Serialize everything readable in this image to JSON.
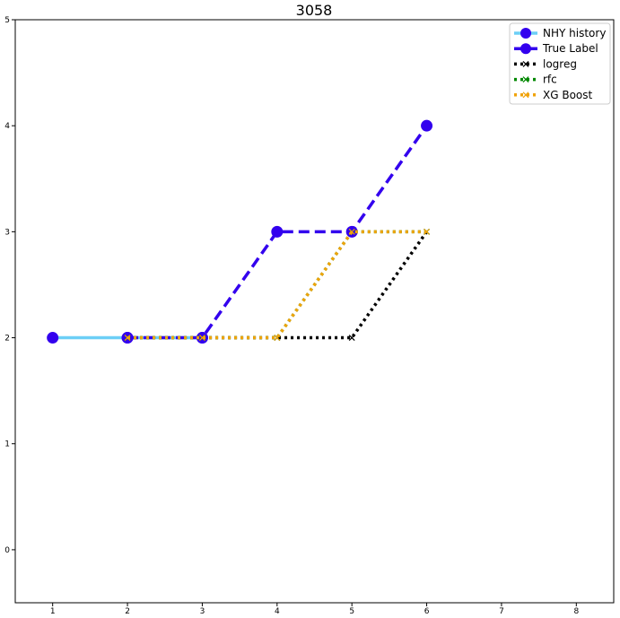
{
  "chart_data": {
    "type": "line",
    "title": "3058",
    "xlabel": "",
    "ylabel": "",
    "xlim": [
      0.5,
      8.5
    ],
    "ylim": [
      -0.5,
      5
    ],
    "xticks": [
      1,
      2,
      3,
      4,
      5,
      6,
      7,
      8
    ],
    "yticks": [
      0,
      1,
      2,
      3,
      4,
      5
    ],
    "grid": false,
    "legend_position": "top-right",
    "series": [
      {
        "name": "NHY history",
        "x": [
          1,
          2,
          3
        ],
        "y": [
          2,
          2,
          2
        ],
        "color": "#6ccff6",
        "style": "solid",
        "marker": "circle"
      },
      {
        "name": "True Label",
        "x": [
          2,
          3,
          4,
          5,
          6
        ],
        "y": [
          2,
          2,
          3,
          3,
          4
        ],
        "color": "#3300ee",
        "style": "dashed",
        "marker": "circle"
      },
      {
        "name": "logreg",
        "x": [
          2,
          3,
          4,
          5,
          6
        ],
        "y": [
          2,
          2,
          2,
          2,
          3
        ],
        "color": "#000000",
        "style": "dotted",
        "marker": "x"
      },
      {
        "name": "rfc",
        "x": [
          2,
          3,
          4,
          5,
          6
        ],
        "y": [
          2,
          2,
          2,
          3,
          3
        ],
        "color": "#008800",
        "style": "dotted",
        "marker": "x"
      },
      {
        "name": "XG Boost",
        "x": [
          2,
          3,
          4,
          5,
          6
        ],
        "y": [
          2,
          2,
          2,
          3,
          3
        ],
        "color": "#f0a30a",
        "style": "dotted",
        "marker": "x"
      }
    ]
  }
}
